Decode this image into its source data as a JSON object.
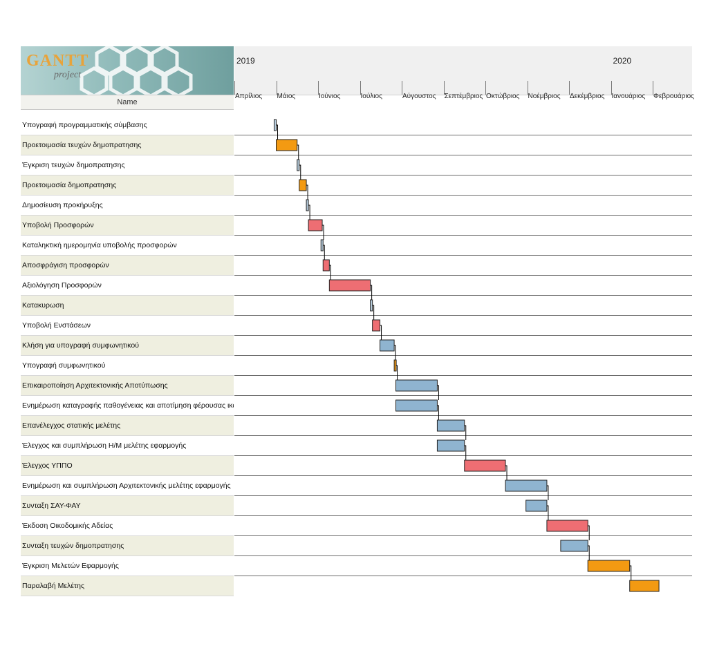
{
  "app": {
    "logo_text": "GANTT",
    "logo_sub": "project",
    "name_column_header": "Name"
  },
  "timeline": {
    "years": [
      {
        "label": "2019",
        "month_index": 0
      },
      {
        "label": "2020",
        "month_index": 9
      }
    ],
    "months": [
      "Απρίλιος",
      "Μάιος",
      "Ιούνιος",
      "Ιούλιος",
      "Αύγουστος",
      "Σεπτέμβριος",
      "Οκτώβριος",
      "Νοέμβριος",
      "Δεκέμβριος",
      "Ιανουάριος",
      "Φεβρουάριος"
    ]
  },
  "colors": {
    "orange": "#f39a12",
    "red": "#ee6e73",
    "blue": "#8fb4d0",
    "milestone": "#b9cfe0",
    "row_alt": "#efefe0",
    "connector": "#000000"
  },
  "tasks": [
    {
      "name": "Υπογραφή προγραμματικής σύμβασης",
      "start": 0.95,
      "end": 1.0,
      "color": "milestone"
    },
    {
      "name": "Προετοιμασία τευχών δημοπρατησης",
      "start": 1.0,
      "end": 1.5,
      "color": "orange"
    },
    {
      "name": "Έγκριση τευχών δημοπρατησης",
      "start": 1.5,
      "end": 1.55,
      "color": "milestone"
    },
    {
      "name": "Προετοιμασία δημοπρατησης",
      "start": 1.55,
      "end": 1.72,
      "color": "orange"
    },
    {
      "name": "Δημοσίευση προκήρυξης",
      "start": 1.72,
      "end": 1.77,
      "color": "milestone"
    },
    {
      "name": "Υποβολή Προσφορών",
      "start": 1.77,
      "end": 2.1,
      "color": "red"
    },
    {
      "name": "Καταληκτική ημερομηνία υποβολής προσφορών",
      "start": 2.07,
      "end": 2.12,
      "color": "milestone"
    },
    {
      "name": "Αποσφράγιση προσφορών",
      "start": 2.12,
      "end": 2.27,
      "color": "red"
    },
    {
      "name": "Αξιολόγηση Προσφορών",
      "start": 2.27,
      "end": 3.25,
      "color": "red"
    },
    {
      "name": "Κατακυρωση",
      "start": 3.25,
      "end": 3.3,
      "color": "milestone"
    },
    {
      "name": "Υποβολή Ενστάσεων",
      "start": 3.3,
      "end": 3.48,
      "color": "red"
    },
    {
      "name": "Κλήση για υπογραφή συμφωνητικού",
      "start": 3.48,
      "end": 3.82,
      "color": "blue"
    },
    {
      "name": "Υπογραφή συμφωνητικού",
      "start": 3.82,
      "end": 3.86,
      "color": "orange"
    },
    {
      "name": "Επικαιροποίηση Αρχιτεκτονικής Αποτύπωσης",
      "start": 3.86,
      "end": 4.85,
      "color": "blue"
    },
    {
      "name": "Ενημέρωση καταγραφής παθογένειας και αποτίμηση φέρουσας ικανότητας υλικών",
      "start": 3.86,
      "end": 4.85,
      "color": "blue"
    },
    {
      "name": "Επανέλεγχος στατικής μελέτης",
      "start": 4.85,
      "end": 5.5,
      "color": "blue"
    },
    {
      "name": "Έλεγχος και συμπλήρωση Η/Μ μελέτης εφαρμογής",
      "start": 4.85,
      "end": 5.5,
      "color": "blue"
    },
    {
      "name": "Έλεγχος ΥΠΠΟ",
      "start": 5.5,
      "end": 6.48,
      "color": "red"
    },
    {
      "name": "Ενημέρωση και συμπλήρωση Αρχιτεκτονικής μελέτης εφαρμογής",
      "start": 6.48,
      "end": 7.47,
      "color": "blue"
    },
    {
      "name": "Συνταξη ΣΑΥ-ΦΑΥ",
      "start": 6.97,
      "end": 7.47,
      "color": "blue"
    },
    {
      "name": "Έκδοση Οικοδομικής Αδείας",
      "start": 7.47,
      "end": 8.45,
      "color": "red"
    },
    {
      "name": "Συνταξη τευχών δημοπρατησης",
      "start": 7.8,
      "end": 8.45,
      "color": "blue"
    },
    {
      "name": "Έγκριση Μελετών Εφαρμογής",
      "start": 8.45,
      "end": 9.45,
      "color": "orange"
    },
    {
      "name": "Παραλαβή Μελέτης",
      "start": 9.45,
      "end": 10.15,
      "color": "orange"
    }
  ]
}
